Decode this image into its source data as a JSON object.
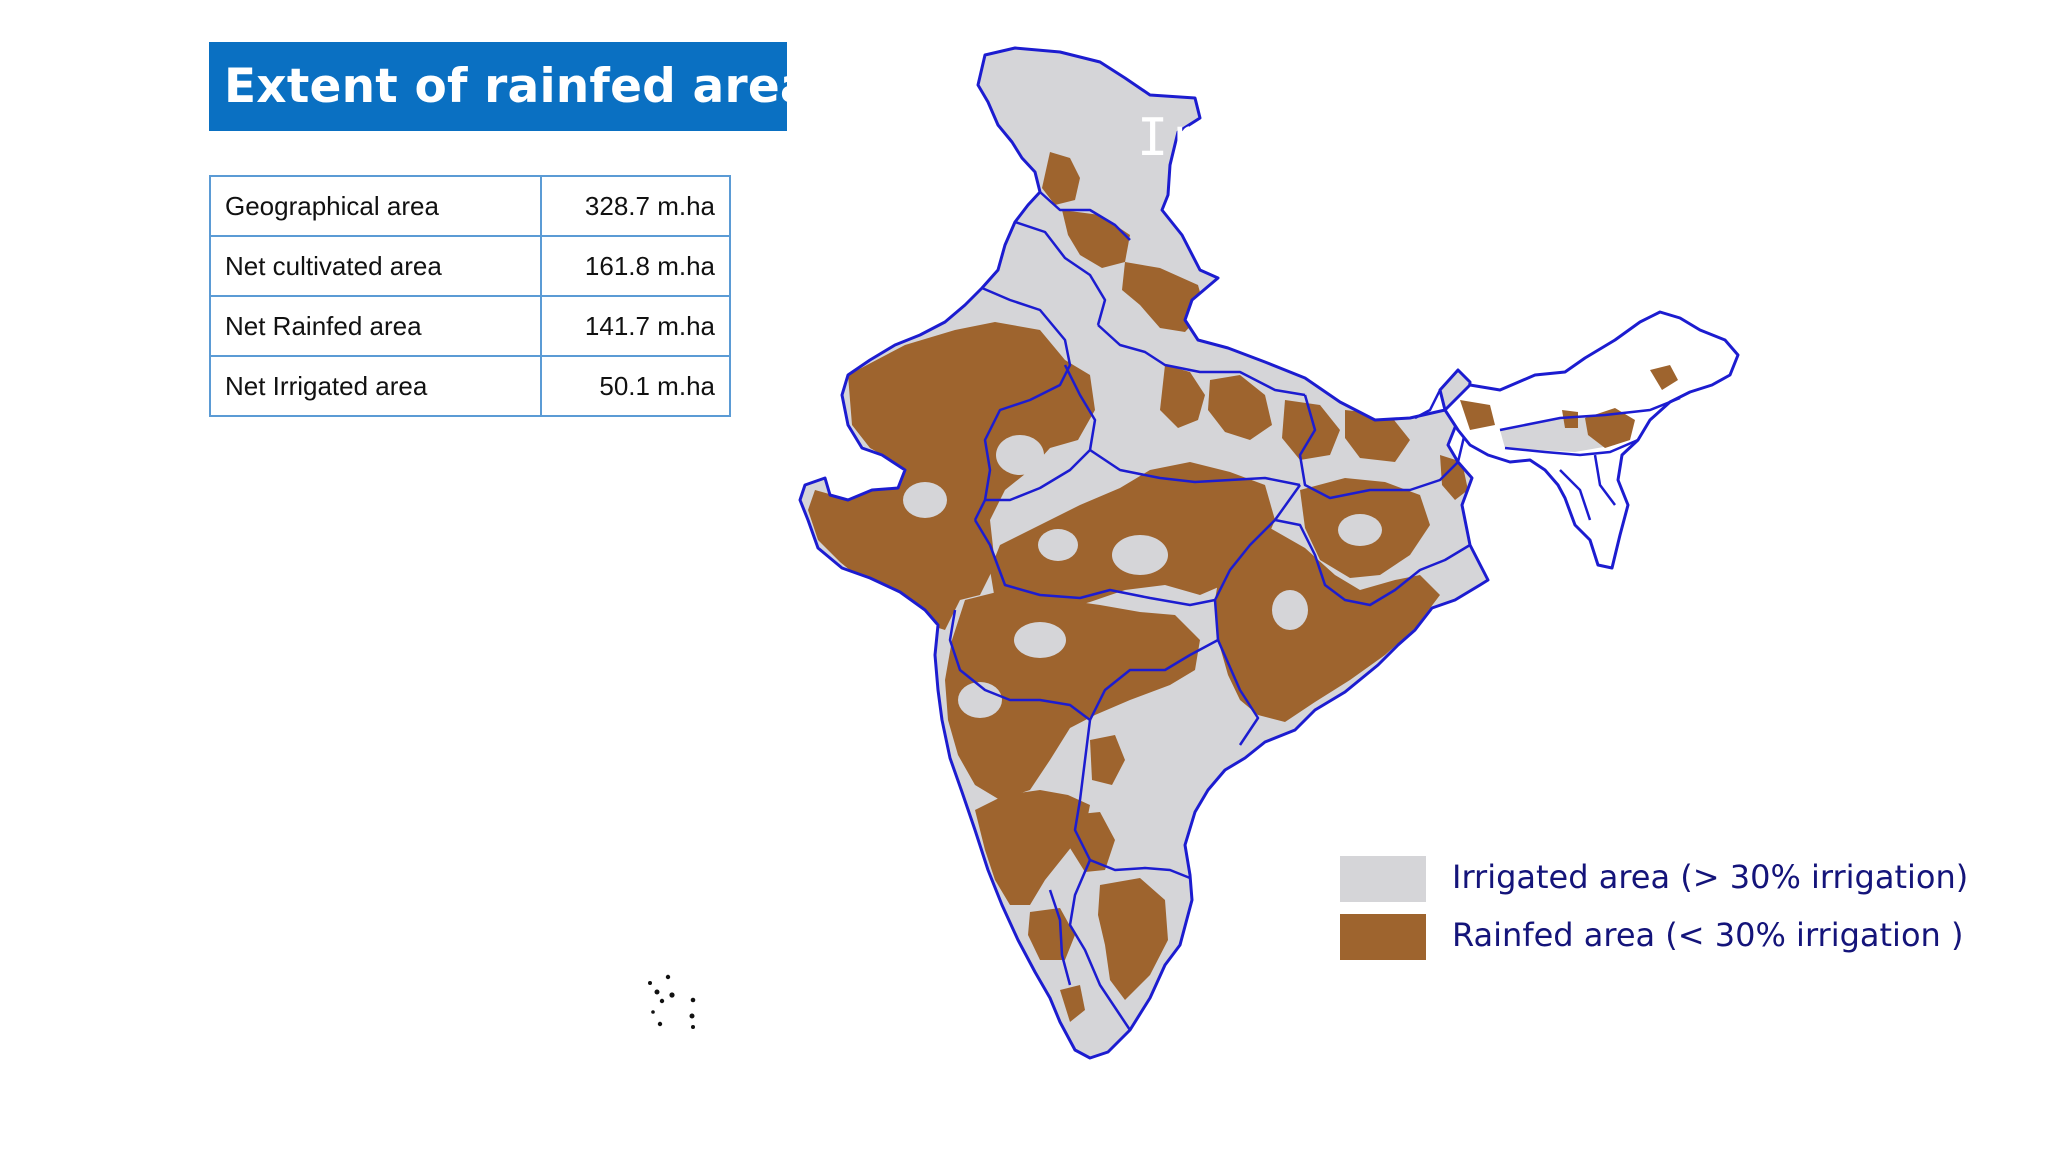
{
  "title": "Extent of rainfed area",
  "stats": [
    {
      "label": "Geographical area",
      "value": "328.7 m.ha"
    },
    {
      "label": "Net cultivated area",
      "value": "161.8 m.ha"
    },
    {
      "label": "Net Rainfed area",
      "value": "141.7 m.ha"
    },
    {
      "label": "Net Irrigated area",
      "value": "50.1 m.ha"
    }
  ],
  "overlay_text": "Ir",
  "legend": [
    {
      "label": "Irrigated area (> 30% irrigation)",
      "color": "#d5d5d8"
    },
    {
      "label": "Rainfed area (< 30% irrigation )",
      "color": "#9e642e"
    }
  ],
  "colors": {
    "title_bg": "#0a70c2",
    "border": "#1c1cd0",
    "irrigated": "#d5d5d8",
    "rainfed": "#9e642e",
    "table_border": "#5b9bd5"
  }
}
